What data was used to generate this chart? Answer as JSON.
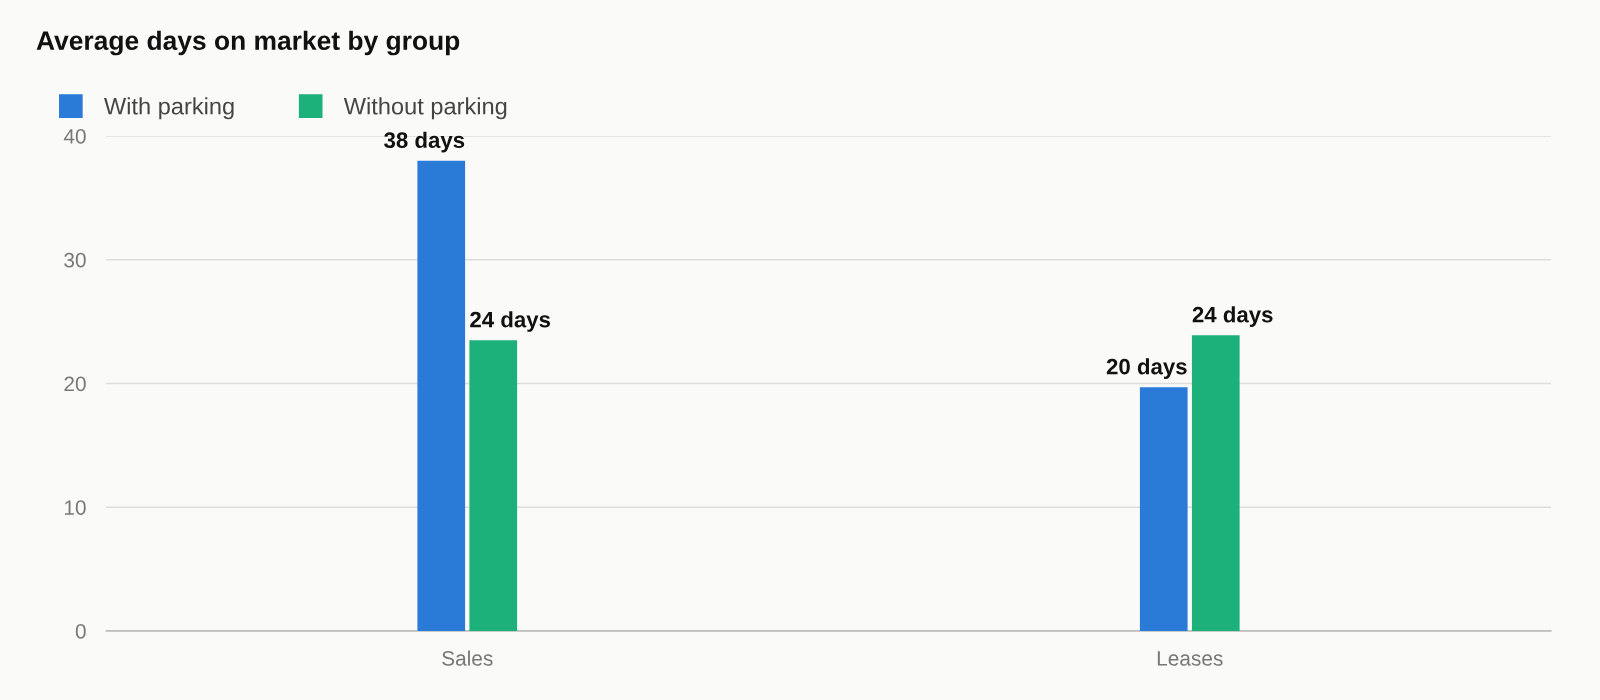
{
  "chart_data": {
    "type": "bar",
    "title": "Average days on market by group",
    "categories": [
      "Sales",
      "Leases"
    ],
    "series": [
      {
        "name": "With parking",
        "color": "#2a7ad8",
        "values": [
          38,
          19.7
        ],
        "value_labels": [
          "38 days",
          "20 days"
        ]
      },
      {
        "name": "Without parking",
        "color": "#1cb07b",
        "values": [
          23.5,
          23.9
        ],
        "value_labels": [
          "24 days",
          "24 days"
        ]
      }
    ],
    "ylim": [
      0,
      40
    ],
    "yticks": [
      0,
      10,
      20,
      30,
      40
    ],
    "grid": "y",
    "legend": "top left"
  }
}
